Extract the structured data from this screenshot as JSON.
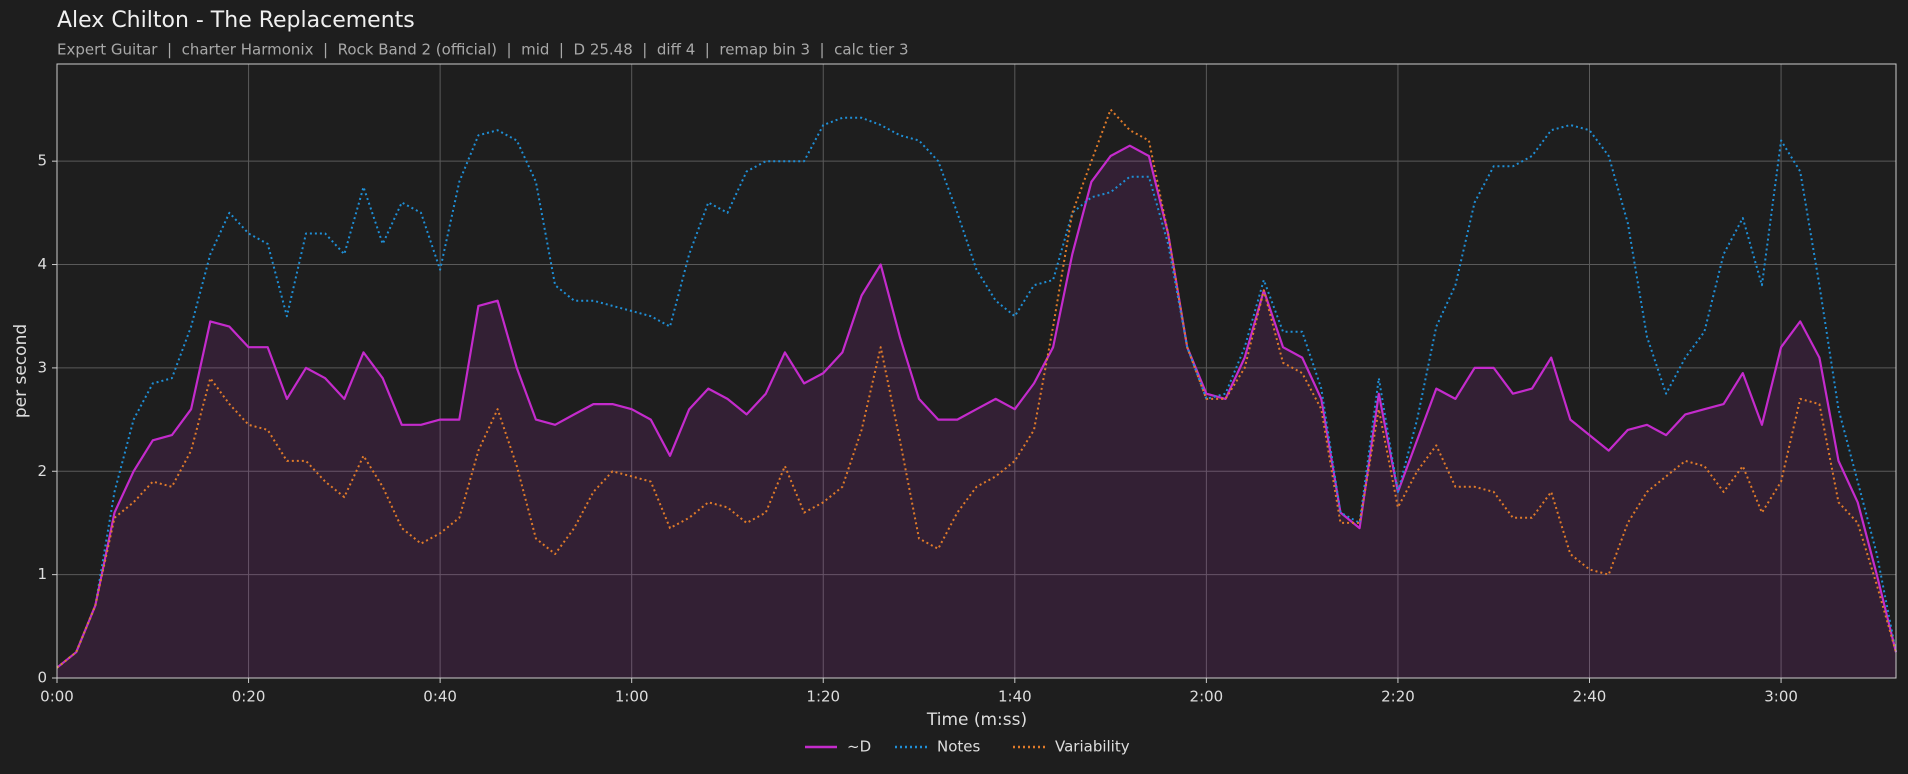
{
  "chart_data": {
    "type": "line",
    "title": "Alex Chilton - The Replacements",
    "subtitle": "Expert Guitar  |  charter Harmonix  |  Rock Band 2 (official)  |  mid  |  D 25.48  |  diff 4  |  remap bin 3  |  calc tier 3",
    "xlabel": "Time (m:ss)",
    "ylabel": "per second",
    "x": [
      0,
      2,
      4,
      6,
      8,
      10,
      12,
      14,
      16,
      18,
      20,
      22,
      24,
      26,
      28,
      30,
      32,
      34,
      36,
      38,
      40,
      42,
      44,
      46,
      48,
      50,
      52,
      54,
      56,
      58,
      60,
      62,
      64,
      66,
      68,
      70,
      72,
      74,
      76,
      78,
      80,
      82,
      84,
      86,
      88,
      90,
      92,
      94,
      96,
      98,
      100,
      102,
      104,
      106,
      108,
      110,
      112,
      114,
      116,
      118,
      120,
      122,
      124,
      126,
      128,
      130,
      132,
      134,
      136,
      138,
      140,
      142,
      144,
      146,
      148,
      150,
      152,
      154,
      156,
      158,
      160,
      162,
      164,
      166,
      168,
      170,
      172,
      174,
      176,
      178,
      180,
      182,
      184,
      186,
      188,
      190,
      192
    ],
    "series": [
      {
        "name": "~D",
        "color": "#c42bcc",
        "style": "solid",
        "fill": true,
        "values": [
          0.1,
          0.25,
          0.7,
          1.6,
          2.0,
          2.3,
          2.35,
          2.6,
          3.45,
          3.4,
          3.2,
          3.2,
          2.7,
          3.0,
          2.9,
          2.7,
          3.15,
          2.9,
          2.45,
          2.45,
          2.5,
          2.5,
          3.6,
          3.65,
          3.0,
          2.5,
          2.45,
          2.55,
          2.65,
          2.65,
          2.6,
          2.5,
          2.15,
          2.6,
          2.8,
          2.7,
          2.55,
          2.75,
          3.15,
          2.85,
          2.95,
          3.15,
          3.7,
          4.0,
          3.3,
          2.7,
          2.5,
          2.5,
          2.6,
          2.7,
          2.6,
          2.85,
          3.2,
          4.1,
          4.8,
          5.05,
          5.15,
          5.05,
          4.3,
          3.2,
          2.75,
          2.7,
          3.1,
          3.75,
          3.2,
          3.1,
          2.7,
          1.6,
          1.45,
          2.75,
          1.8,
          2.3,
          2.8,
          2.7,
          3.0,
          3.0,
          2.75,
          2.8,
          3.1,
          2.5,
          2.35,
          2.2,
          2.4,
          2.45,
          2.35,
          2.55,
          2.6,
          2.65,
          2.95,
          2.45,
          3.2,
          3.45,
          3.1,
          2.1,
          1.7,
          1.0,
          0.25
        ]
      },
      {
        "name": "Notes",
        "color": "#1f8fd6",
        "style": "dotted",
        "fill": false,
        "values": [
          0.1,
          0.25,
          0.7,
          1.8,
          2.5,
          2.85,
          2.9,
          3.4,
          4.1,
          4.5,
          4.3,
          4.2,
          3.5,
          4.3,
          4.3,
          4.1,
          4.75,
          4.2,
          4.6,
          4.5,
          3.95,
          4.8,
          5.25,
          5.3,
          5.2,
          4.8,
          3.8,
          3.65,
          3.65,
          3.6,
          3.55,
          3.5,
          3.4,
          4.1,
          4.6,
          4.5,
          4.9,
          5.0,
          5.0,
          5.0,
          5.35,
          5.42,
          5.42,
          5.35,
          5.25,
          5.2,
          5.0,
          4.5,
          3.95,
          3.65,
          3.5,
          3.8,
          3.85,
          4.5,
          4.65,
          4.7,
          4.85,
          4.85,
          4.2,
          3.2,
          2.7,
          2.75,
          3.2,
          3.85,
          3.35,
          3.35,
          2.8,
          1.6,
          1.5,
          2.9,
          1.8,
          2.5,
          3.4,
          3.8,
          4.6,
          4.95,
          4.95,
          5.05,
          5.3,
          5.35,
          5.3,
          5.05,
          4.4,
          3.3,
          2.75,
          3.1,
          3.35,
          4.1,
          4.45,
          3.8,
          5.2,
          4.9,
          3.8,
          2.6,
          1.9,
          1.2,
          0.25
        ]
      },
      {
        "name": "Variability",
        "color": "#e07b2a",
        "style": "dotted",
        "fill": false,
        "values": [
          0.1,
          0.25,
          0.7,
          1.55,
          1.7,
          1.9,
          1.85,
          2.2,
          2.9,
          2.65,
          2.45,
          2.4,
          2.1,
          2.1,
          1.9,
          1.75,
          2.15,
          1.85,
          1.45,
          1.3,
          1.4,
          1.55,
          2.2,
          2.6,
          2.05,
          1.35,
          1.2,
          1.45,
          1.8,
          2.0,
          1.95,
          1.9,
          1.45,
          1.55,
          1.7,
          1.65,
          1.5,
          1.6,
          2.05,
          1.6,
          1.7,
          1.85,
          2.4,
          3.2,
          2.3,
          1.35,
          1.25,
          1.6,
          1.85,
          1.95,
          2.1,
          2.4,
          3.4,
          4.5,
          5.0,
          5.5,
          5.3,
          5.2,
          4.3,
          3.2,
          2.7,
          2.7,
          3.0,
          3.75,
          3.05,
          2.95,
          2.6,
          1.5,
          1.5,
          2.6,
          1.65,
          2.0,
          2.25,
          1.85,
          1.85,
          1.8,
          1.55,
          1.55,
          1.8,
          1.2,
          1.05,
          1.0,
          1.5,
          1.8,
          1.95,
          2.1,
          2.05,
          1.8,
          2.05,
          1.6,
          1.9,
          2.7,
          2.65,
          1.7,
          1.5,
          0.9,
          0.25
        ]
      }
    ],
    "xlim": [
      0,
      192
    ],
    "xticks": [
      {
        "value": 0,
        "label": "0:00"
      },
      {
        "value": 20,
        "label": "0:20"
      },
      {
        "value": 40,
        "label": "0:40"
      },
      {
        "value": 60,
        "label": "1:00"
      },
      {
        "value": 80,
        "label": "1:20"
      },
      {
        "value": 100,
        "label": "1:40"
      },
      {
        "value": 120,
        "label": "2:00"
      },
      {
        "value": 140,
        "label": "2:20"
      },
      {
        "value": 160,
        "label": "2:40"
      },
      {
        "value": 180,
        "label": "3:00"
      }
    ],
    "ylim": [
      0,
      5.94
    ],
    "yticks": [
      0,
      1,
      2,
      3,
      4,
      5
    ],
    "grid": true,
    "legend": "bottom"
  }
}
